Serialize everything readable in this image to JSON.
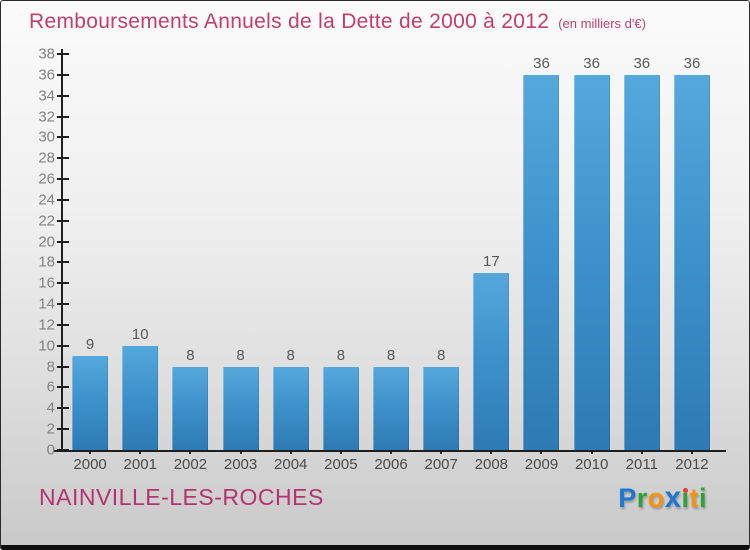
{
  "page": {
    "bg_top": "#fbfbfb",
    "bg_bottom": "#c9c9c9",
    "frame_border_color": "#1c1c1c"
  },
  "header": {
    "title": "Remboursements Annuels de la Dette de 2000 à 2012",
    "subtitle": "(en milliers d'€)",
    "title_color": "#c43d6e"
  },
  "chart_data": {
    "type": "bar",
    "title": "Remboursements Annuels de la Dette de 2000 à 2012",
    "subtitle": "(en milliers d'€)",
    "categories": [
      "2000",
      "2001",
      "2002",
      "2003",
      "2004",
      "2005",
      "2006",
      "2007",
      "2008",
      "2009",
      "2010",
      "2011",
      "2012"
    ],
    "values": [
      9,
      10,
      8,
      8,
      8,
      8,
      8,
      8,
      17,
      36,
      36,
      36,
      36
    ],
    "xlabel": "",
    "ylabel": "",
    "ylim": [
      0,
      38
    ],
    "ytick_step": 2,
    "grid": false,
    "legend": false,
    "bar_color_top": "#55a8dc",
    "bar_color_mid": "#3e93cc",
    "bar_color_bottom": "#2d7ab4",
    "axis_color": "#1f1f1f",
    "y_tick_label_color": "#828282",
    "x_tick_label_color": "#4a4a4a",
    "value_label_color": "#595959"
  },
  "footer": {
    "commune": "NAINVILLE-LES-ROCHES",
    "commune_color": "#b5336e",
    "logo": {
      "name": "Proxiti",
      "letters": [
        {
          "ch": "P",
          "color": "#1e78d2"
        },
        {
          "ch": "r",
          "color": "#2fa13c"
        },
        {
          "ch": "o",
          "color": "#f6920b"
        },
        {
          "ch": "x",
          "color": "#1e78d2",
          "bold": true
        },
        {
          "ch": "i",
          "color": "#2fa13c",
          "dotless": true,
          "dot_color": "#e23d2e"
        },
        {
          "ch": "t",
          "color": "#f6920b"
        },
        {
          "ch": "i",
          "color": "#2fa13c"
        }
      ]
    }
  }
}
